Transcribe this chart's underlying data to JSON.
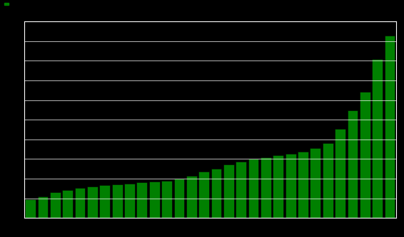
{
  "values": [
    2.0,
    2.3,
    2.8,
    3.0,
    3.2,
    3.4,
    3.5,
    3.6,
    3.7,
    3.8,
    3.9,
    4.0,
    4.2,
    4.5,
    5.0,
    5.3,
    5.7,
    6.0,
    6.3,
    6.5,
    6.7,
    6.9,
    7.1,
    7.5,
    8.0,
    9.5,
    11.5,
    13.5,
    17.0,
    19.5
  ],
  "bar_color": "#008000",
  "bar_edge_color": "#000000",
  "background_color": "#000000",
  "plot_bg_color": "#000000",
  "grid_color": "#ffffff",
  "legend_color": "#008000",
  "ylim": [
    0,
    21
  ],
  "grid_linewidth": 0.5,
  "n_gridlines": 10
}
